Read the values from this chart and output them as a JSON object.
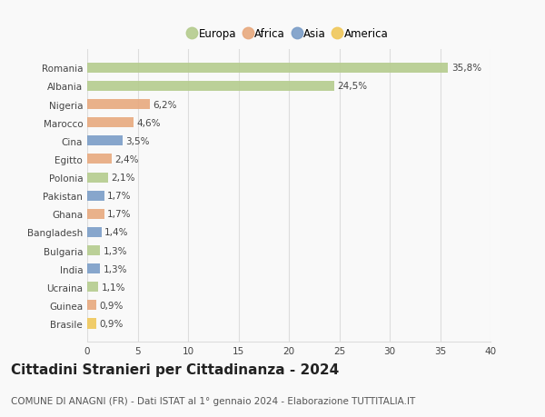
{
  "countries": [
    "Romania",
    "Albania",
    "Nigeria",
    "Marocco",
    "Cina",
    "Egitto",
    "Polonia",
    "Pakistan",
    "Ghana",
    "Bangladesh",
    "Bulgaria",
    "India",
    "Ucraina",
    "Guinea",
    "Brasile"
  ],
  "values": [
    35.8,
    24.5,
    6.2,
    4.6,
    3.5,
    2.4,
    2.1,
    1.7,
    1.7,
    1.4,
    1.3,
    1.3,
    1.1,
    0.9,
    0.9
  ],
  "labels": [
    "35,8%",
    "24,5%",
    "6,2%",
    "4,6%",
    "3,5%",
    "2,4%",
    "2,1%",
    "1,7%",
    "1,7%",
    "1,4%",
    "1,3%",
    "1,3%",
    "1,1%",
    "0,9%",
    "0,9%"
  ],
  "continents": [
    "Europa",
    "Europa",
    "Africa",
    "Africa",
    "Asia",
    "Africa",
    "Europa",
    "Asia",
    "Africa",
    "Asia",
    "Europa",
    "Asia",
    "Europa",
    "Africa",
    "America"
  ],
  "continent_colors": {
    "Europa": "#b5cc8e",
    "Africa": "#e8a97e",
    "Asia": "#7b9dc7",
    "America": "#f0c85a"
  },
  "legend_order": [
    "Europa",
    "Africa",
    "Asia",
    "America"
  ],
  "title": "Cittadini Stranieri per Cittadinanza - 2024",
  "subtitle": "COMUNE DI ANAGNI (FR) - Dati ISTAT al 1° gennaio 2024 - Elaborazione TUTTITALIA.IT",
  "xlim": [
    0,
    40
  ],
  "xticks": [
    0,
    5,
    10,
    15,
    20,
    25,
    30,
    35,
    40
  ],
  "background_color": "#f9f9f9",
  "grid_color": "#dddddd",
  "title_fontsize": 11,
  "subtitle_fontsize": 7.5,
  "label_fontsize": 7.5,
  "tick_fontsize": 7.5,
  "legend_fontsize": 8.5
}
